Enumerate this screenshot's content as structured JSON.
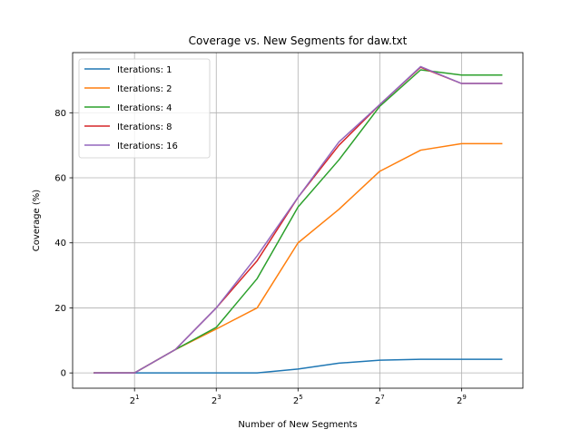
{
  "chart_data": {
    "type": "line",
    "title": "Coverage vs. New Segments for daw.txt",
    "xlabel": "Number of New Segments",
    "ylabel": "Coverage (%)",
    "x_scale": "log2",
    "x": [
      1,
      2,
      4,
      8,
      16,
      32,
      64,
      128,
      256,
      512,
      1024
    ],
    "xlim": [
      0.7,
      1450
    ],
    "ylim": [
      -4.7,
      98.5
    ],
    "x_ticks": [
      {
        "value": 2,
        "base": "2",
        "exp": "1"
      },
      {
        "value": 8,
        "base": "2",
        "exp": "3"
      },
      {
        "value": 32,
        "base": "2",
        "exp": "5"
      },
      {
        "value": 128,
        "base": "2",
        "exp": "7"
      },
      {
        "value": 512,
        "base": "2",
        "exp": "9"
      }
    ],
    "y_ticks": [
      0,
      20,
      40,
      60,
      80
    ],
    "grid": true,
    "legend_position": "top-left",
    "series": [
      {
        "name": "Iterations: 1",
        "color": "#1f77b4",
        "values": [
          0,
          0,
          0,
          0,
          0,
          1.2,
          3.0,
          3.9,
          4.2,
          4.2,
          4.2
        ]
      },
      {
        "name": "Iterations: 2",
        "color": "#ff7f0e",
        "values": [
          0,
          0,
          7.2,
          13.5,
          20.0,
          40.0,
          50.3,
          62.0,
          68.5,
          70.5,
          70.5
        ]
      },
      {
        "name": "Iterations: 4",
        "color": "#2ca02c",
        "values": [
          0,
          0,
          7.2,
          14.0,
          29.0,
          51.0,
          65.5,
          82.0,
          93.2,
          91.6,
          91.6
        ]
      },
      {
        "name": "Iterations: 8",
        "color": "#d62728",
        "values": [
          0,
          0,
          7.2,
          20.0,
          34.5,
          54.0,
          70.0,
          82.5,
          94.0,
          89.0,
          89.0
        ]
      },
      {
        "name": "Iterations: 16",
        "color": "#9467bd",
        "values": [
          0,
          0,
          7.2,
          20.0,
          36.0,
          54.0,
          71.0,
          82.5,
          94.2,
          89.0,
          89.0
        ]
      }
    ]
  }
}
